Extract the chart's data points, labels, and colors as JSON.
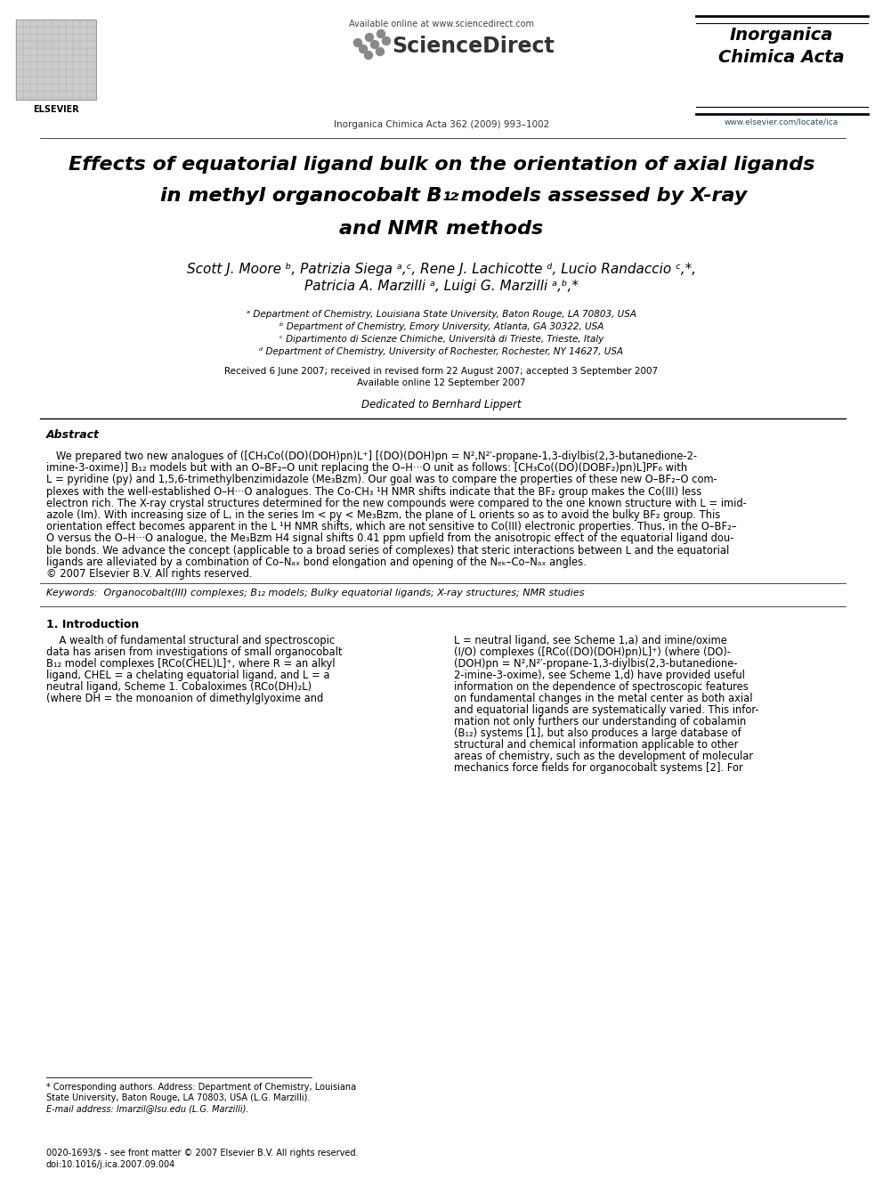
{
  "title_line1": "Effects of equatorial ligand bulk on the orientation of axial ligands",
  "title_line2_pre": "in methyl organocobalt B",
  "title_line2_sub": "12",
  "title_line2_post": " models assessed by X-ray",
  "title_line3": "and NMR methods",
  "authors_line1": "Scott J. Moore ᵇ, Patrizia Siega ᵃ,ᶜ, Rene J. Lachicotte ᵈ, Lucio Randaccio ᶜ,*,",
  "authors_line2": "Patricia A. Marzilli ᵃ, Luigi G. Marzilli ᵃ,ᵇ,*",
  "affil_a": "ᵃ Department of Chemistry, Louisiana State University, Baton Rouge, LA 70803, USA",
  "affil_b": "ᵇ Department of Chemistry, Emory University, Atlanta, GA 30322, USA",
  "affil_c": "ᶜ Dipartimento di Scienze Chimiche, Università di Trieste, Trieste, Italy",
  "affil_d": "ᵈ Department of Chemistry, University of Rochester, Rochester, NY 14627, USA",
  "received_text": "Received 6 June 2007; received in revised form 22 August 2007; accepted 3 September 2007",
  "available_text": "Available online 12 September 2007",
  "dedicated_text": "Dedicated to Bernhard Lippert",
  "abstract_title": "Abstract",
  "abstract_lines": [
    "   We prepared two new analogues of ([CH₃Co((DO)(DOH)pn)L⁺] [(DO)(DOH)pn = N²,N²′-propane-1,3-diylbis(2,3-butanedione-2-",
    "imine-3-oxime)] B₁₂ models but with an O–BF₂–O unit replacing the O–H···O unit as follows: [CH₃Co((DO)(DOBF₂)pn)L]PF₆ with",
    "L = pyridine (py) and 1,5,6-trimethylbenzimidazole (Me₃Bzm). Our goal was to compare the properties of these new O–BF₂–O com-",
    "plexes with the well-established O–H···O analogues. The Co-CH₃ ¹H NMR shifts indicate that the BF₂ group makes the Co(III) less",
    "electron rich. The X-ray crystal structures determined for the new compounds were compared to the one known structure with L = imid-",
    "azole (Im). With increasing size of L, in the series Im < py < Me₃Bzm, the plane of L orients so as to avoid the bulky BF₂ group. This",
    "orientation effect becomes apparent in the L ¹H NMR shifts, which are not sensitive to Co(III) electronic properties. Thus, in the O–BF₂–",
    "O versus the O–H···O analogue, the Me₃Bzm H4 signal shifts 0.41 ppm upfield from the anisotropic effect of the equatorial ligand dou-",
    "ble bonds. We advance the concept (applicable to a broad series of complexes) that steric interactions between L and the equatorial",
    "ligands are alleviated by a combination of Co–Nₐₓ bond elongation and opening of the Nₑₖ–Co–Nₐₓ angles."
  ],
  "copyright_text": "© 2007 Elsevier B.V. All rights reserved.",
  "keywords_text": "Keywords:  Organocobalt(III) complexes; B₁₂ models; Bulky equatorial ligands; X-ray structures; NMR studies",
  "intro_title": "1. Introduction",
  "col1_lines": [
    "    A wealth of fundamental structural and spectroscopic",
    "data has arisen from investigations of small organocobalt",
    "B₁₂ model complexes [RCo(CHEL)L]⁺, where R = an alkyl",
    "ligand, CHEL = a chelating equatorial ligand, and L = a",
    "neutral ligand, Scheme 1. Cobaloximes (RCo(DH)₂L)",
    "(where DH = the monoanion of dimethylglyoxime and"
  ],
  "col2_lines": [
    "L = neutral ligand, see Scheme 1,a) and imine/oxime",
    "(I/O) complexes ([RCo((DO)(DOH)pn)L]⁺) (where (DO)-",
    "(DOH)pn = N²,N²′-propane-1,3-diylbis(2,3-butanedione-",
    "2-imine-3-oxime), see Scheme 1,d) have provided useful",
    "information on the dependence of spectroscopic features",
    "on fundamental changes in the metal center as both axial",
    "and equatorial ligands are systematically varied. This infor-",
    "mation not only furthers our understanding of cobalamin",
    "(B₁₂) systems [1], but also produces a large database of",
    "structural and chemical information applicable to other",
    "areas of chemistry, such as the development of molecular",
    "mechanics force fields for organocobalt systems [2]. For"
  ],
  "footnote_line1": "* Corresponding authors. Address: Department of Chemistry, Louisiana",
  "footnote_line2": "State University, Baton Rouge, LA 70803, USA (L.G. Marzilli).",
  "footnote_line3": "E-mail address: lmarzil@lsu.edu (L.G. Marzilli).",
  "issn_line1": "0020-1693/$ - see front matter © 2007 Elsevier B.V. All rights reserved.",
  "issn_line2": "doi:10.1016/j.ica.2007.09.004",
  "journal_header": "Inorganica Chimica Acta 362 (2009) 993–1002",
  "available_online": "Available online at www.sciencedirect.com",
  "sciencedirect": "ScienceDirect",
  "journal_name_line1": "Inorganica",
  "journal_name_line2": "Chimica Acta",
  "website": "www.elsevier.com/locate/ica",
  "bg_color": "#ffffff"
}
